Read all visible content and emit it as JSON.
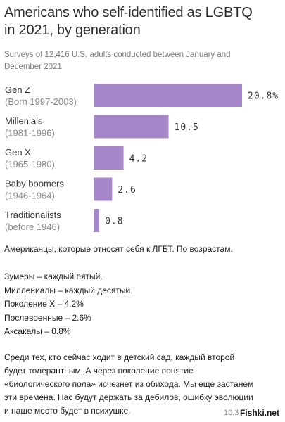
{
  "chart_data": {
    "type": "bar",
    "orientation": "horizontal",
    "title": "Americans who self-identified as LGBTQ in 2021, by generation",
    "subtitle": "Surveys of 12,416 U.S. adults conducted between January and December 2021",
    "categories": [
      {
        "name": "Gen Z",
        "sub": "(Born 1997-2003)"
      },
      {
        "name": "Millenials",
        "sub": "(1981-1996)"
      },
      {
        "name": "Gen X",
        "sub": "(1965-1980)"
      },
      {
        "name": "Baby boomers",
        "sub": "(1946-1964)"
      },
      {
        "name": "Traditionalists",
        "sub": "(before 1946)"
      }
    ],
    "values": [
      20.8,
      10.5,
      4.2,
      2.6,
      0.8
    ],
    "value_labels": [
      "20.8%",
      "10.5",
      "4.2",
      "2.6",
      "0.8"
    ],
    "xlim": [
      0,
      20.8
    ],
    "grid": false,
    "bar_color": "#a587c9"
  },
  "text": {
    "title_line1": "Americans who self-identified as LGBTQ",
    "title_line2": "in 2021, by generation",
    "subtitle_line1": "Surveys of 12,416 U.S. adults conducted between January and",
    "subtitle_line2": "December 2021"
  },
  "caption": {
    "heading": "Американцы, которые относят себя к ЛГБТ. По возрастам.",
    "items": [
      "Зумеры – каждый пятый.",
      "Миллениалы – каждый десятый.",
      "Поколение Х – 4.2%",
      "Послевоенные – 2.6%",
      "Аксакалы – 0.8%"
    ],
    "paragraph_lines": [
      "Среди тех, кто сейчас ходит в детский сад, каждый второй",
      "будет толерантным. А через поколение понятие",
      "«биологического пола» исчезнет из обихода. Мы еще застанем",
      "эти времена. Нас будут держать за дебилов, ошибку эволюции",
      "и наше место будет в психушке."
    ],
    "corner_number": "10.3",
    "watermark": "Fishki.net"
  }
}
